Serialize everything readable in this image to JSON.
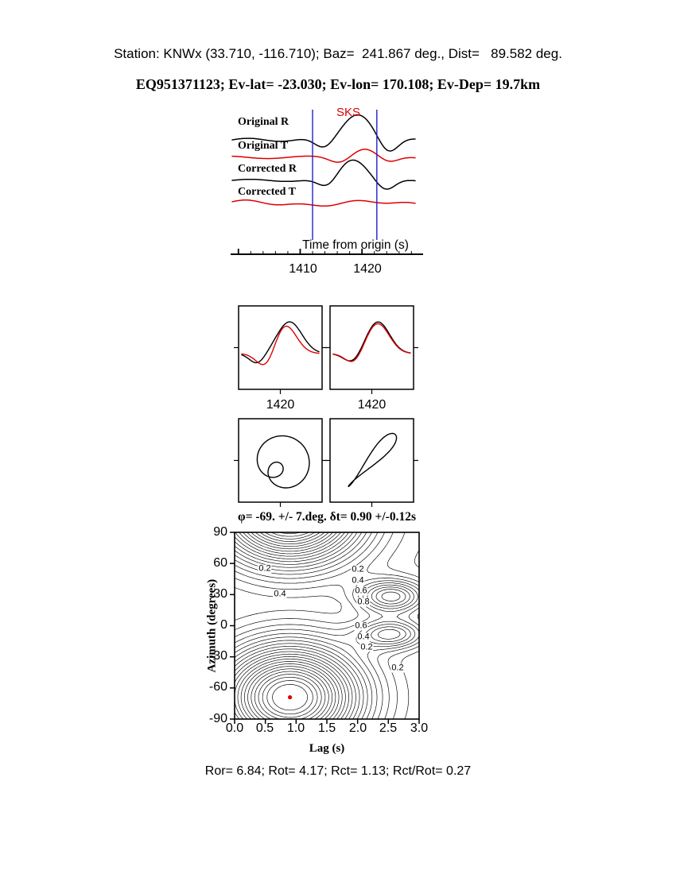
{
  "header": {
    "line1": "Station: KNWx (33.710, -116.710); Baz=  241.867 deg., Dist=   89.582 deg.",
    "line2": "EQ951371123; Ev-lat= -23.030; Ev-lon= 170.108; Ev-Dep= 19.7km"
  },
  "waveform_panel": {
    "phase_label": "SKS",
    "trace_labels": [
      "Original R",
      "Original T",
      "Corrected R",
      "Corrected T"
    ],
    "xlabel": "Time from origin (s)",
    "xticks": [
      "1410",
      "1420"
    ]
  },
  "comparison_panel": {
    "tick_label": "1420"
  },
  "contour_panel": {
    "title": "φ= -69. +/- 7.deg. δt= 0.90 +/-0.12s",
    "ylabel": "Azimuth (degrees)",
    "xlabel": "Lag (s)",
    "yticks": [
      "90",
      "60",
      "30",
      "0",
      "-30",
      "-60",
      "-90"
    ],
    "xticks": [
      "0.0",
      "0.5",
      "1.0",
      "1.5",
      "2.0",
      "2.5",
      "3.0"
    ],
    "labels": [
      "0.2",
      "0.4",
      "0.2",
      "0.4",
      "0.6",
      "0.8",
      "0.6",
      "0.4",
      "0.2",
      "0.2"
    ]
  },
  "footer": {
    "text": "Ror= 6.84; Rot= 4.17; Rct= 1.13; Rct/Rot= 0.27"
  },
  "colors": {
    "trace_black": "#000000",
    "trace_red": "#dd0000",
    "window_blue": "#2222cc",
    "best_fit_red": "#dd0000"
  },
  "chart_data": [
    {
      "type": "line",
      "id": "waveform-traces",
      "xlabel": "Time from origin (s)",
      "x_range_s": [
        1399,
        1428.6
      ],
      "xticks": [
        1410,
        1420
      ],
      "selection_window_s": [
        1412.0,
        1422.4
      ],
      "phase": "SKS",
      "series": [
        {
          "name": "Original R",
          "color": "#000000"
        },
        {
          "name": "Original T",
          "color": "#dd0000"
        },
        {
          "name": "Corrected R",
          "color": "#000000"
        },
        {
          "name": "Corrected T",
          "color": "#dd0000"
        }
      ]
    },
    {
      "type": "line",
      "id": "fast-slow-waveform-overlay",
      "panels": [
        {
          "name": "original fast/slow pair",
          "xtick": 1420,
          "series": [
            "fast (black)",
            "slow (red)"
          ]
        },
        {
          "name": "corrected fast/slow pair",
          "xtick": 1420,
          "series": [
            "fast (black)",
            "slow (red)"
          ]
        }
      ]
    },
    {
      "type": "line",
      "id": "particle-motion",
      "panels": [
        {
          "name": "original particle motion",
          "shape": "elliptical loop"
        },
        {
          "name": "corrected particle motion",
          "shape": "linearized diagonal"
        }
      ]
    },
    {
      "type": "heatmap",
      "id": "splitting-error-surface",
      "title": "φ= -69. +/- 7.deg. δt= 0.90 +/-0.12s",
      "xlabel": "Lag (s)",
      "ylabel": "Azimuth (degrees)",
      "xlim": [
        0.0,
        3.0
      ],
      "ylim": [
        -90,
        90
      ],
      "xticks": [
        0.0,
        0.5,
        1.0,
        1.5,
        2.0,
        2.5,
        3.0
      ],
      "yticks": [
        90,
        60,
        30,
        0,
        -30,
        -60,
        -90
      ],
      "contour_labels": [
        0.2,
        0.4,
        0.6,
        0.8
      ],
      "best_fit": {
        "azimuth_deg": -69,
        "azimuth_err_deg": 7,
        "lag_s": 0.9,
        "lag_err_s": 0.12
      }
    }
  ],
  "amplitude_ratios": {
    "Ror": 6.84,
    "Rot": 4.17,
    "Rct": 1.13,
    "Rct_over_Rot": 0.27
  }
}
